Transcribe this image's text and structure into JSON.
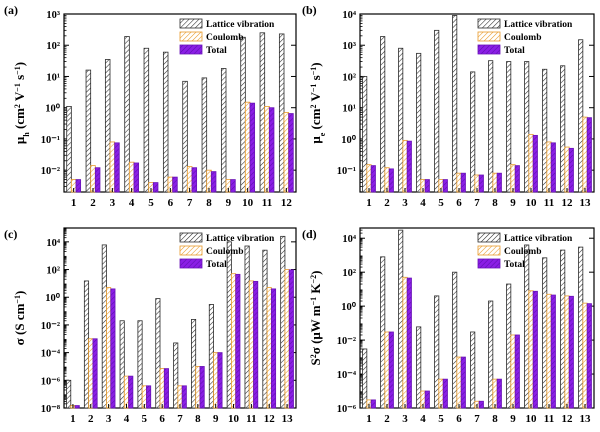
{
  "colors": {
    "lattice_stroke": "#2b2b2b",
    "coulomb_stroke": "#e89a2a",
    "total_fill": "#8b1ee6",
    "total_stroke": "#6a14b8",
    "axis": "#000000"
  },
  "chart_data": [
    {
      "type": "bar",
      "panel_label": "(a)",
      "y_scale": "log",
      "ylim": [
        0.002,
        1000
      ],
      "ytick_exps": [
        -2,
        -1,
        0,
        1,
        2,
        3
      ],
      "ytick_labels": [
        "10⁻²",
        "10⁻¹",
        "10⁰",
        "10¹",
        "10²",
        "10³"
      ],
      "ylabel_parts": [
        "μ",
        "h",
        " (cm",
        "2",
        " V",
        "−1",
        " s",
        "−1",
        ")"
      ],
      "categories": [
        "1",
        "2",
        "3",
        "4",
        "5",
        "6",
        "7",
        "8",
        "9",
        "10",
        "11",
        "12"
      ],
      "legend": [
        "Lattice vibration",
        "Coulomb",
        "Total"
      ],
      "legend_position": "top-right",
      "series": [
        {
          "name": "Lattice vibration",
          "values": [
            1.1,
            16,
            35,
            190,
            80,
            60,
            7,
            9,
            18,
            180,
            250,
            230
          ]
        },
        {
          "name": "Coulomb",
          "values": [
            0.005,
            0.014,
            0.08,
            0.018,
            0.004,
            0.006,
            0.013,
            0.01,
            0.005,
            1.5,
            1.1,
            0.7
          ]
        },
        {
          "name": "Total",
          "values": [
            0.005,
            0.012,
            0.075,
            0.017,
            0.004,
            0.006,
            0.012,
            0.009,
            0.005,
            1.4,
            1.0,
            0.65
          ]
        }
      ]
    },
    {
      "type": "bar",
      "panel_label": "(b)",
      "y_scale": "log",
      "ylim": [
        0.02,
        10000
      ],
      "ytick_exps": [
        -1,
        0,
        1,
        2,
        3,
        4
      ],
      "ytick_labels": [
        "10⁻¹",
        "10⁰",
        "10¹",
        "10²",
        "10³",
        "10⁴"
      ],
      "ylabel_parts": [
        "μ",
        "e",
        " (cm",
        "2",
        " V",
        "−1",
        " s",
        "−1",
        ")"
      ],
      "categories": [
        "1",
        "2",
        "3",
        "4",
        "5",
        "6",
        "7",
        "8",
        "9",
        "10",
        "11",
        "12",
        "13"
      ],
      "legend": [
        "Lattice vibration",
        "Coulomb",
        "Total"
      ],
      "legend_position": "top-right",
      "series": [
        {
          "name": "Lattice vibration",
          "values": [
            100,
            1900,
            800,
            550,
            3000,
            9000,
            140,
            320,
            300,
            300,
            170,
            220,
            1500
          ]
        },
        {
          "name": "Coulomb",
          "values": [
            0.15,
            0.12,
            0.9,
            0.05,
            0.05,
            0.08,
            0.07,
            0.08,
            0.15,
            1.4,
            0.8,
            0.55,
            5
          ]
        },
        {
          "name": "Total",
          "values": [
            0.14,
            0.11,
            0.85,
            0.05,
            0.05,
            0.08,
            0.07,
            0.08,
            0.14,
            1.3,
            0.75,
            0.5,
            4.8
          ]
        }
      ]
    },
    {
      "type": "bar",
      "panel_label": "(c)",
      "y_scale": "log",
      "ylim": [
        1e-08,
        100000
      ],
      "ytick_exps": [
        -8,
        -6,
        -4,
        -2,
        0,
        2,
        4
      ],
      "ytick_labels": [
        "10⁻⁸",
        "10⁻⁶",
        "10⁻⁴",
        "10⁻²",
        "10⁰",
        "10²",
        "10⁴"
      ],
      "ylabel_parts": [
        "σ",
        "",
        " (S cm",
        "−1",
        ")"
      ],
      "categories": [
        "1",
        "2",
        "3",
        "4",
        "5",
        "6",
        "7",
        "8",
        "9",
        "10",
        "11",
        "12",
        "13"
      ],
      "legend": [
        "Lattice vibration",
        "Coulomb",
        "Total"
      ],
      "legend_position": "top-right",
      "series": [
        {
          "name": "Lattice vibration",
          "values": [
            1e-06,
            15,
            6000,
            0.02,
            0.02,
            0.8,
            0.0005,
            0.025,
            0.3,
            10000,
            5000,
            2500,
            25000
          ]
        },
        {
          "name": "Coulomb",
          "values": [
            1.5e-08,
            0.001,
            5,
            2e-06,
            4e-07,
            7e-06,
            4e-07,
            1e-05,
            0.0001,
            50,
            15,
            5,
            100
          ]
        },
        {
          "name": "Total",
          "values": [
            1.5e-08,
            0.001,
            4,
            2e-06,
            4e-07,
            7e-06,
            4e-07,
            1e-05,
            0.0001,
            45,
            14,
            4,
            95
          ]
        }
      ]
    },
    {
      "type": "bar",
      "panel_label": "(d)",
      "y_scale": "log",
      "ylim": [
        1e-06,
        40000
      ],
      "ytick_exps": [
        -6,
        -4,
        -2,
        0,
        2,
        4
      ],
      "ytick_labels": [
        "10⁻⁶",
        "10⁻⁴",
        "10⁻²",
        "10⁰",
        "10²",
        "10⁴"
      ],
      "ylabel_parts": [
        "S",
        "2",
        "σ (μW m",
        "−1",
        " K",
        "−2",
        ")"
      ],
      "categories": [
        "1",
        "2",
        "3",
        "4",
        "5",
        "6",
        "7",
        "8",
        "9",
        "10",
        "11",
        "12",
        "13"
      ],
      "legend": [
        "Lattice vibration",
        "Coulomb",
        "Total"
      ],
      "legend_position": "top-right",
      "series": [
        {
          "name": "Lattice vibration",
          "values": [
            0.003,
            800,
            30000,
            0.06,
            4,
            100,
            0.03,
            2,
            20,
            4000,
            700,
            2000,
            3000
          ]
        },
        {
          "name": "Coulomb",
          "values": [
            3e-06,
            0.03,
            50,
            1e-05,
            5e-05,
            0.001,
            2.5e-06,
            5e-05,
            0.02,
            8,
            5,
            4,
            1.5
          ]
        },
        {
          "name": "Total",
          "values": [
            3e-06,
            0.03,
            45,
            1e-05,
            5e-05,
            0.001,
            2.5e-06,
            5e-05,
            0.02,
            7.5,
            4.5,
            3.8,
            1.4
          ]
        }
      ]
    }
  ]
}
